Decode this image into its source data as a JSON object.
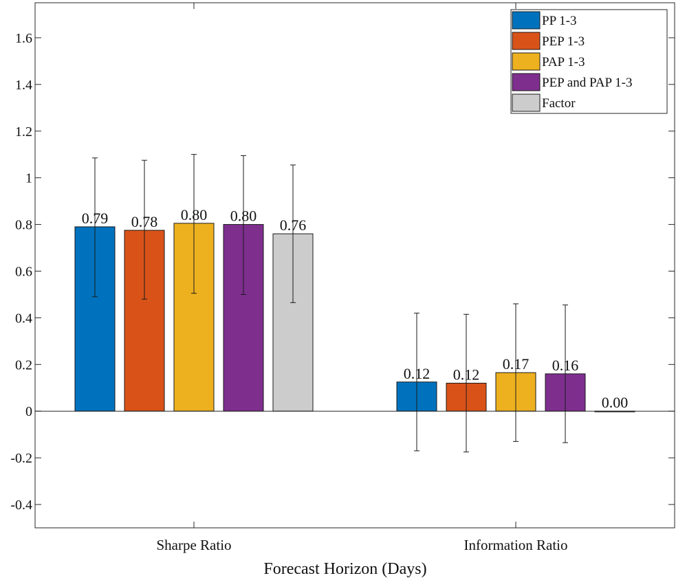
{
  "chart_data": {
    "type": "bar",
    "xlabel": "Forecast Horizon (Days)",
    "ylabel": "",
    "title": "",
    "categories": [
      "Sharpe Ratio",
      "Information Ratio"
    ],
    "ylim": [
      -0.5,
      1.75
    ],
    "yticks": [
      -0.4,
      -0.2,
      0,
      0.2,
      0.4,
      0.6,
      0.8,
      1,
      1.2,
      1.4,
      1.6
    ],
    "ytick_labels": [
      "-0.4",
      "-0.2",
      "0",
      "0.2",
      "0.4",
      "0.6",
      "0.8",
      "1",
      "1.2",
      "1.4",
      "1.6"
    ],
    "legend_position": "top-right",
    "grid": false,
    "series": [
      {
        "name": "PP 1-3",
        "color": "#0072BD",
        "values": [
          0.79,
          0.125
        ],
        "value_labels": [
          "0.79",
          "0.12"
        ],
        "error_low": [
          0.49,
          -0.17
        ],
        "error_high": [
          1.085,
          0.42
        ]
      },
      {
        "name": "PEP 1-3",
        "color": "#D95319",
        "values": [
          0.775,
          0.12
        ],
        "value_labels": [
          "0.78",
          "0.12"
        ],
        "error_low": [
          0.48,
          -0.175
        ],
        "error_high": [
          1.075,
          0.415
        ]
      },
      {
        "name": "PAP 1-3",
        "color": "#EDB120",
        "values": [
          0.805,
          0.165
        ],
        "value_labels": [
          "0.80",
          "0.17"
        ],
        "error_low": [
          0.505,
          -0.13
        ],
        "error_high": [
          1.1,
          0.46
        ]
      },
      {
        "name": "PEP and PAP 1-3",
        "color": "#7E2F8E",
        "values": [
          0.8,
          0.16
        ],
        "value_labels": [
          "0.80",
          "0.16"
        ],
        "error_low": [
          0.5,
          -0.135
        ],
        "error_high": [
          1.095,
          0.455
        ]
      },
      {
        "name": "Factor",
        "color": "#CCCCCC",
        "values": [
          0.76,
          0.0
        ],
        "value_labels": [
          "0.76",
          "0.00"
        ],
        "error_low": [
          0.465,
          null
        ],
        "error_high": [
          1.055,
          null
        ]
      }
    ]
  }
}
